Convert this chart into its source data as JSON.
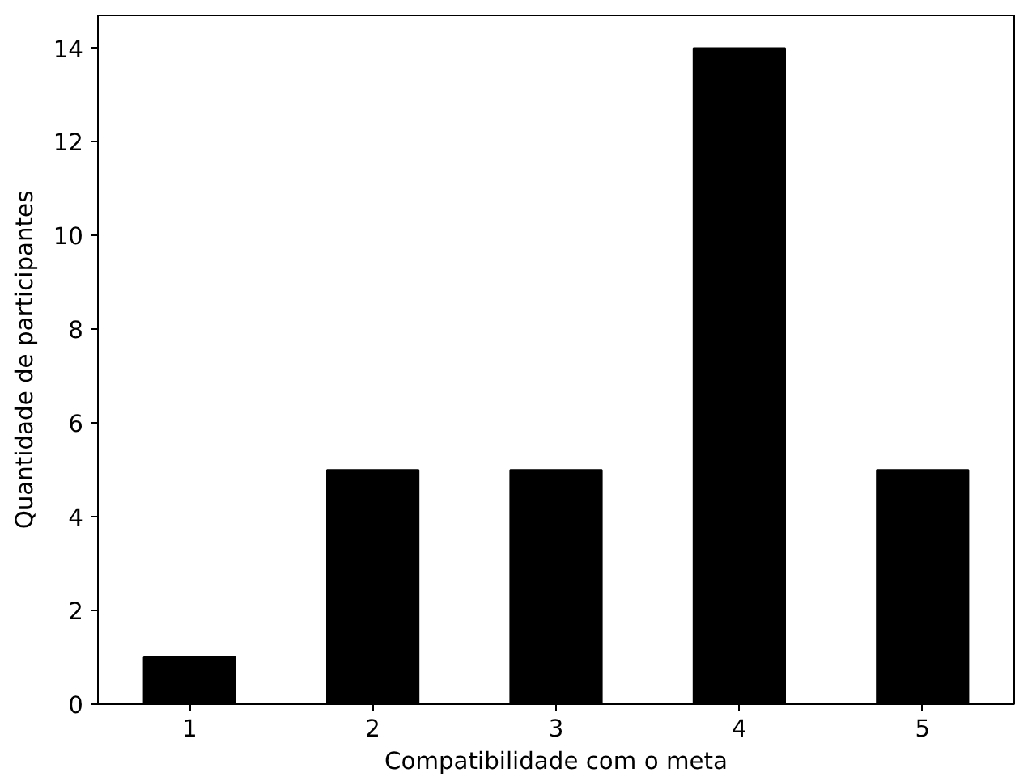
{
  "chart_data": {
    "type": "bar",
    "xlabel": "Compatibilidade com o meta",
    "ylabel": "Quantidade de participantes",
    "categories": [
      "1",
      "2",
      "3",
      "4",
      "5"
    ],
    "values": [
      1,
      5,
      5,
      14,
      5
    ],
    "color": "#000000",
    "ylim": [
      0,
      14.7
    ],
    "yticks": [
      0,
      2,
      4,
      6,
      8,
      10,
      12,
      14
    ],
    "grid": false
  }
}
